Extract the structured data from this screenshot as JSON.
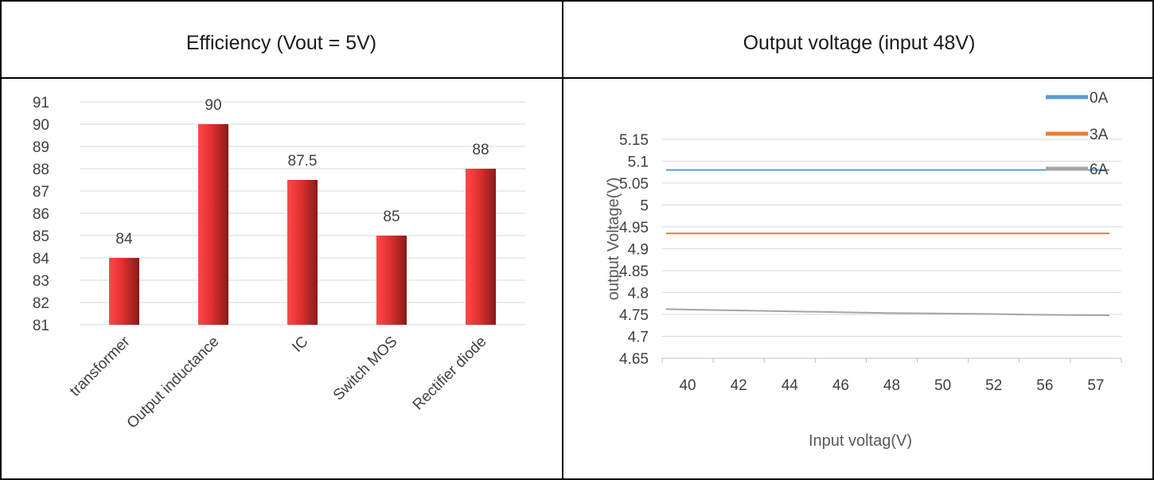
{
  "table": {
    "left_header": "Efficiency (Vout = 5V)",
    "right_header": "Output voltage (input 48V)"
  },
  "chart_data": [
    {
      "type": "bar",
      "title": "",
      "categories": [
        "transformer",
        "Output inductance",
        "IC",
        "Switch MOS",
        "Rectifier diode"
      ],
      "series": [
        {
          "values": [
            84,
            90,
            87.5,
            85,
            88
          ]
        }
      ],
      "data_labels": [
        "84",
        "90",
        "87.5",
        "85",
        "88"
      ],
      "y_ticks": [
        "91",
        "90",
        "89",
        "88",
        "87",
        "86",
        "85",
        "84",
        "83",
        "82",
        "81"
      ],
      "ylim": [
        81,
        91
      ],
      "grid": true,
      "bar_color_light": "#ff4848",
      "bar_color_dark": "#8a1a1a"
    },
    {
      "type": "line",
      "title": "",
      "xlabel": "Input voltag(V)",
      "ylabel": "output Voltage(V)",
      "categories": [
        "40",
        "42",
        "44",
        "46",
        "48",
        "50",
        "52",
        "56",
        "57"
      ],
      "series": [
        {
          "name": "0A",
          "color": "#5b9bd5",
          "values": [
            5.08,
            5.08,
            5.08,
            5.08,
            5.08,
            5.08,
            5.08,
            5.08,
            5.08
          ]
        },
        {
          "name": "3A",
          "color": "#ed7d31",
          "values": [
            4.935,
            4.935,
            4.935,
            4.935,
            4.935,
            4.935,
            4.935,
            4.935,
            4.935
          ]
        },
        {
          "name": "6A",
          "color": "#a5a5a5",
          "values": [
            4.762,
            4.759,
            4.757,
            4.755,
            4.753,
            4.752,
            4.751,
            4.749,
            4.748
          ]
        }
      ],
      "y_ticks": [
        "5.15",
        "5.1",
        "5.05",
        "5",
        "4.95",
        "4.9",
        "4.85",
        "4.8",
        "4.75",
        "4.7",
        "4.65"
      ],
      "ylim": [
        4.65,
        5.15
      ],
      "grid": true,
      "legend_position": "top-right"
    }
  ]
}
